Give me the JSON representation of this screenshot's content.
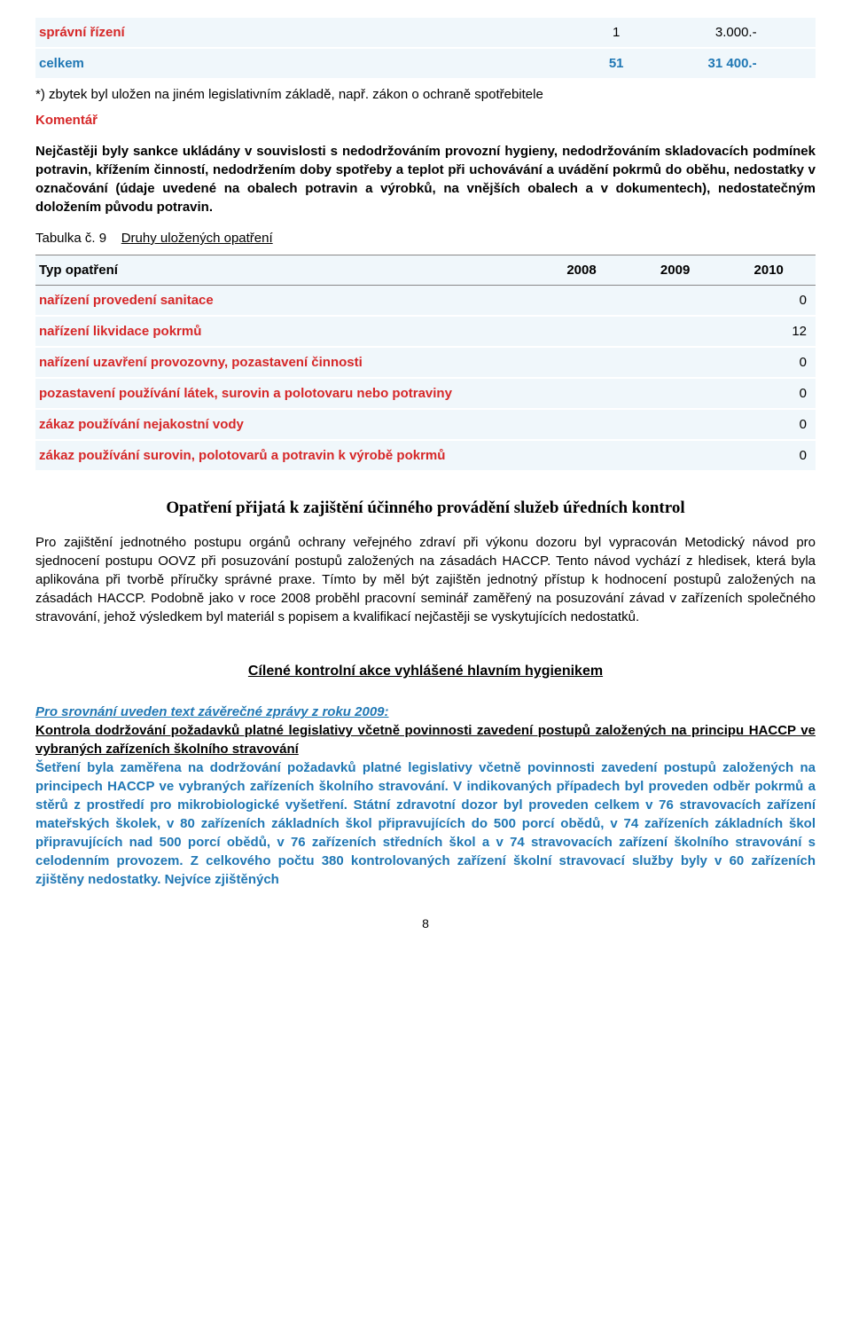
{
  "tableTop": {
    "rows": [
      {
        "label": "správní řízení",
        "c1": "1",
        "c2": "3.000.-",
        "labelClass": "red-bold",
        "valueClass": ""
      },
      {
        "label": "celkem",
        "c1": "51",
        "c2": "31 400.-",
        "labelClass": "blue-bold",
        "valueClass": "blue-bold"
      }
    ]
  },
  "notes": {
    "note1": "*) zbytek byl uložen na jiném legislativním základě, např. zákon o ochraně spotřebitele",
    "komentar_label": "Komentář",
    "komentar_text": "Nejčastěji byly sankce ukládány v souvislosti s nedodržováním provozní hygieny, nedodržováním skladovacích podmínek potravin, křížením činností, nedodržením doby spotřeby a teplot při uchovávání a uvádění pokrmů do oběhu, nedostatky v označování (údaje uvedené na obalech potravin a výrobků, na vnějších obalech a v dokumentech), nedostatečným doložením původu potravin."
  },
  "table9": {
    "caption_prefix": "Tabulka č. 9",
    "caption_link": "Druhy uložených opatření",
    "columns": [
      "Typ opatření",
      "2008",
      "2009",
      "2010"
    ],
    "rows": [
      {
        "label": "nařízení provedení sanitace",
        "v": "0",
        "labelClass": "red-bold"
      },
      {
        "label": "nařízení likvidace pokrmů",
        "v": "12",
        "labelClass": "red-bold"
      },
      {
        "label": "nařízení uzavření provozovny, pozastavení činnosti",
        "v": "0",
        "labelClass": "red-bold"
      },
      {
        "label": "pozastavení používání látek, surovin a polotovaru nebo potraviny",
        "v": "0",
        "labelClass": "red-bold"
      },
      {
        "label": "zákaz používání nejakostní vody",
        "v": "0",
        "labelClass": "red-bold"
      },
      {
        "label": "zákaz používání surovin, polotovarů a potravin k výrobě pokrmů",
        "v": "0",
        "labelClass": "red-bold"
      }
    ]
  },
  "section2": {
    "title": "Opatření přijatá k zajištění účinného provádění služeb úředních kontrol",
    "body": "Pro zajištění jednotného postupu orgánů ochrany veřejného zdraví při výkonu dozoru byl vypracován Metodický návod pro sjednocení postupu OOVZ při posuzování postupů založených na zásadách HACCP. Tento návod vychází z hledisek, která byla aplikována při tvorbě příručky správné praxe. Tímto by měl být zajištěn jednotný přístup k hodnocení postupů založených na zásadách HACCP. Podobně jako v roce 2008 proběhl pracovní seminář zaměřený na posuzování závad v zařízeních společného stravování, jehož výsledkem byl materiál s popisem a kvalifikací nejčastěji se vyskytujících nedostatků."
  },
  "section3": {
    "title": "Cílené kontrolní akce vyhlášené hlavním hygienikem"
  },
  "blueBlock": {
    "line1": "Pro srovnání uveden text závěrečné zprávy z roku 2009:",
    "line2": "Kontrola dodržování požadavků platné legislativy včetně povinnosti zavedení postupů založených na principu HACCP ve vybraných zařízeních školního stravování",
    "body": "Šetření byla zaměřena na dodržování požadavků platné legislativy včetně povinnosti zavedení postupů založených na principech HACCP ve vybraných zařízeních školního stravování. V indikovaných případech byl proveden odběr pokrmů a stěrů z prostředí pro mikrobiologické vyšetření. Státní zdravotní dozor byl proveden celkem v 76 stravovacích zařízení mateřských školek, v 80 zařízeních základních škol připravujících do 500 porcí obědů, v 74 zařízeních základních škol připravujících nad 500 porcí obědů, v 76 zařízeních středních škol a v 74 stravovacích zařízení školního stravování s celodenním provozem. Z celkového počtu 380 kontrolovaných zařízení školní stravovací služby byly v 60 zařízeních zjištěny nedostatky. Nejvíce zjištěných"
  },
  "pageNumber": "8"
}
